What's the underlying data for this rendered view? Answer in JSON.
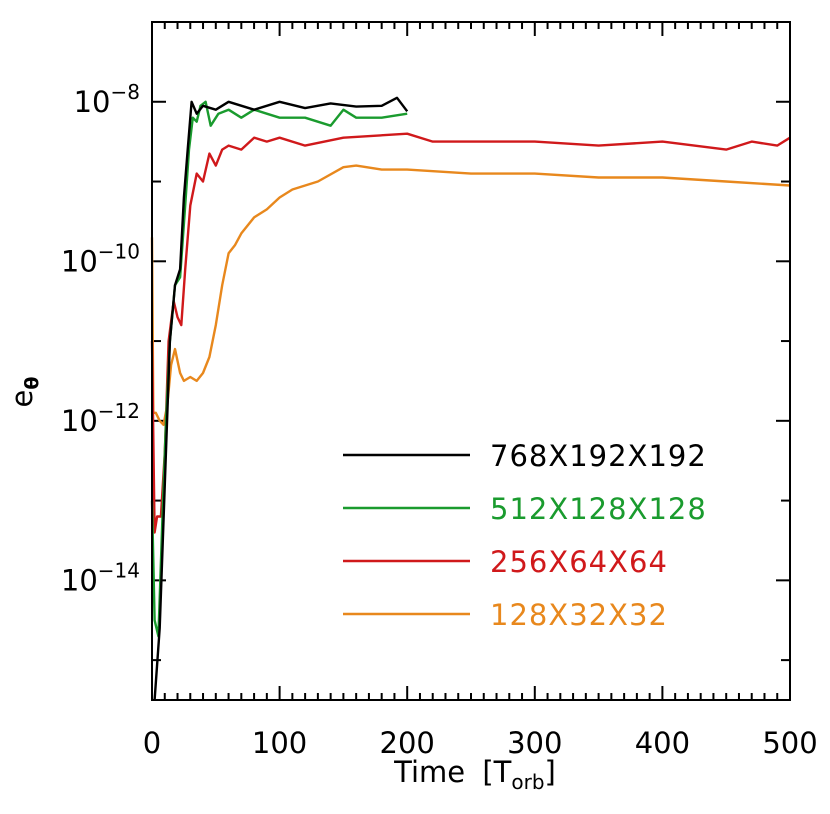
{
  "chart_data": {
    "type": "line",
    "xlabel": "Time",
    "xlabel_unit": "T",
    "xlabel_unit_sub": "orb",
    "xlabel_open": "[",
    "xlabel_close": "]",
    "ylabel": "e",
    "ylabel_sub": "θ",
    "xlim": [
      0,
      500
    ],
    "ylim_log10": [
      -15.5,
      -7.0
    ],
    "yscale": "log",
    "x_ticks": [
      {
        "value": 0,
        "label": "0"
      },
      {
        "value": 100,
        "label": "100"
      },
      {
        "value": 200,
        "label": "200"
      },
      {
        "value": 300,
        "label": "300"
      },
      {
        "value": 400,
        "label": "400"
      },
      {
        "value": 500,
        "label": "500"
      }
    ],
    "y_ticks": [
      {
        "log": -8,
        "base": "10",
        "exp": "−8"
      },
      {
        "log": -10,
        "base": "10",
        "exp": "−10"
      },
      {
        "log": -12,
        "base": "10",
        "exp": "−12"
      },
      {
        "log": -14,
        "base": "10",
        "exp": "−14"
      }
    ],
    "legend_placement": "bottom-right",
    "series": [
      {
        "name": "768X192X192",
        "color": "#000000",
        "x": [
          2,
          6,
          10,
          14,
          18,
          22,
          25,
          28,
          31,
          35,
          40,
          50,
          60,
          80,
          100,
          120,
          140,
          160,
          180,
          192,
          200
        ],
        "log_e": [
          -15.5,
          -14.6,
          -12.8,
          -11.0,
          -10.3,
          -10.1,
          -9.2,
          -8.6,
          -8.0,
          -8.15,
          -8.05,
          -8.1,
          -8.0,
          -8.1,
          -8.0,
          -8.08,
          -8.02,
          -8.06,
          -8.05,
          -7.95,
          -8.12
        ]
      },
      {
        "name": "512X128X128",
        "color": "#1a9b2e",
        "x": [
          0,
          2,
          5,
          8,
          11,
          14,
          18,
          22,
          26,
          29,
          32,
          35,
          38,
          42,
          46,
          52,
          60,
          70,
          80,
          90,
          100,
          110,
          120,
          140,
          150,
          160,
          170,
          180,
          200
        ],
        "log_e": [
          -13.0,
          -14.5,
          -14.7,
          -13.3,
          -12.0,
          -11.0,
          -10.3,
          -10.2,
          -9.3,
          -8.6,
          -8.2,
          -8.25,
          -8.05,
          -8.0,
          -8.3,
          -8.15,
          -8.1,
          -8.2,
          -8.1,
          -8.15,
          -8.2,
          -8.2,
          -8.2,
          -8.3,
          -8.1,
          -8.2,
          -8.2,
          -8.2,
          -8.15
        ]
      },
      {
        "name": "256X64X64",
        "color": "#d0191b",
        "x": [
          0,
          2,
          4,
          7,
          10,
          13,
          17,
          20,
          23,
          26,
          30,
          35,
          40,
          45,
          50,
          55,
          60,
          70,
          80,
          90,
          100,
          120,
          150,
          200,
          220,
          250,
          300,
          350,
          400,
          450,
          470,
          490,
          500
        ],
        "log_e": [
          -11.0,
          -13.4,
          -13.2,
          -13.2,
          -12.4,
          -11.0,
          -10.5,
          -10.7,
          -10.8,
          -10.1,
          -9.3,
          -8.9,
          -9.0,
          -8.65,
          -8.8,
          -8.6,
          -8.55,
          -8.6,
          -8.45,
          -8.5,
          -8.45,
          -8.55,
          -8.45,
          -8.4,
          -8.5,
          -8.5,
          -8.5,
          -8.55,
          -8.5,
          -8.6,
          -8.5,
          -8.55,
          -8.45
        ]
      },
      {
        "name": "128X32X32",
        "color": "#e8881d",
        "x": [
          0,
          1,
          3,
          6,
          9,
          12,
          15,
          18,
          22,
          25,
          30,
          35,
          40,
          45,
          50,
          55,
          60,
          65,
          70,
          80,
          90,
          100,
          110,
          130,
          150,
          160,
          180,
          200,
          250,
          300,
          350,
          400,
          450,
          500
        ],
        "log_e": [
          -9.7,
          -11.9,
          -11.9,
          -12.0,
          -12.05,
          -11.8,
          -11.3,
          -11.1,
          -11.4,
          -11.5,
          -11.45,
          -11.5,
          -11.4,
          -11.2,
          -10.8,
          -10.3,
          -9.9,
          -9.8,
          -9.65,
          -9.45,
          -9.35,
          -9.2,
          -9.1,
          -9.0,
          -8.82,
          -8.8,
          -8.85,
          -8.85,
          -8.9,
          -8.9,
          -8.95,
          -8.95,
          -9.0,
          -9.05
        ]
      }
    ]
  }
}
